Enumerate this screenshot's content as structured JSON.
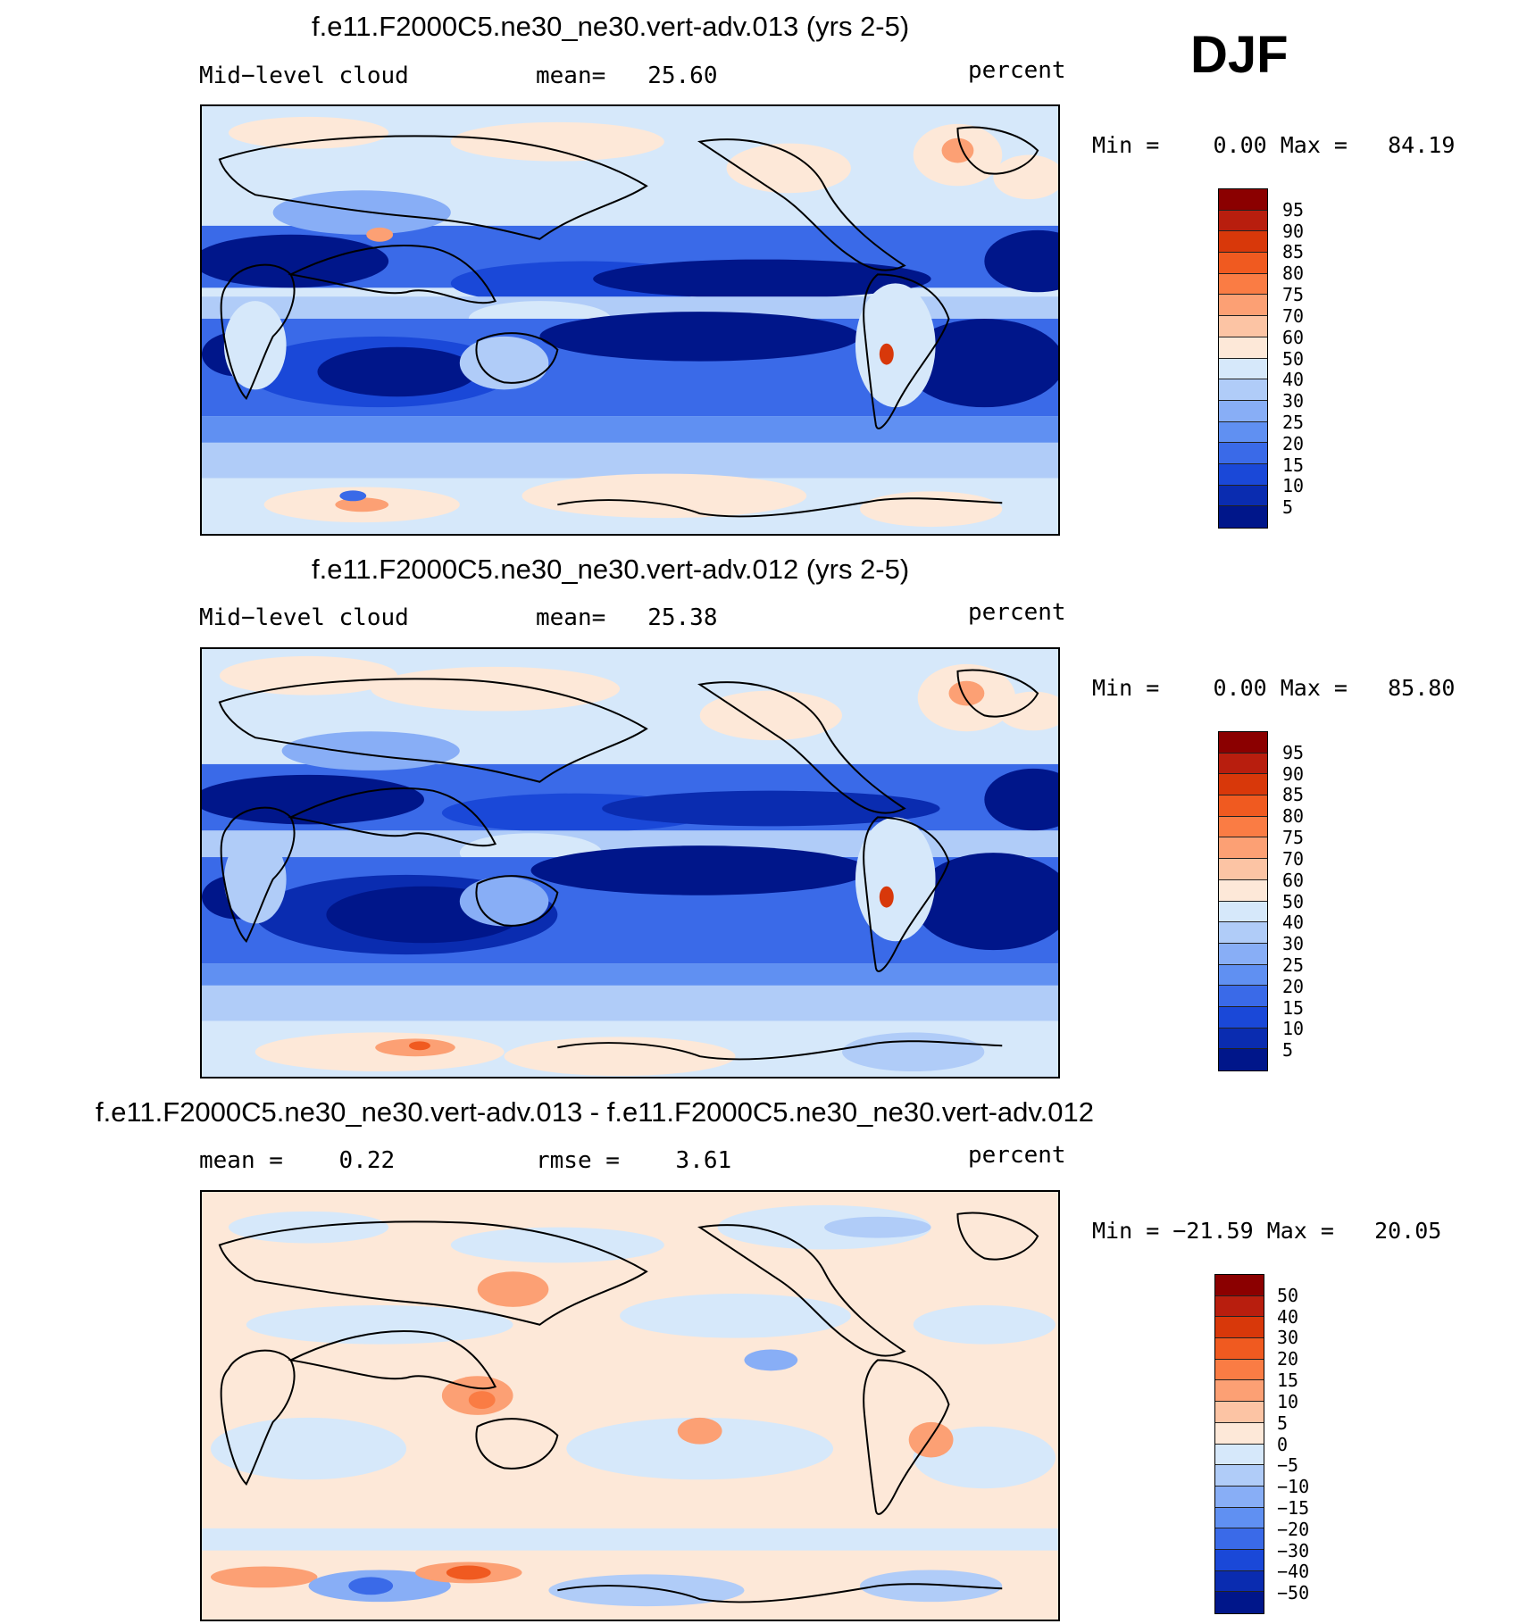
{
  "season": "DJF",
  "panels": [
    {
      "title": "f.e11.F2000C5.ne30_ne30.vert-adv.013 (yrs 2-5)",
      "left_label": "Mid−level cloud",
      "center_label": "mean=   25.60",
      "right_label": "percent",
      "minmax": "Min =    0.00 Max =   84.19",
      "colorbar": {
        "levels": [
          "95",
          "90",
          "85",
          "80",
          "75",
          "70",
          "60",
          "50",
          "40",
          "30",
          "25",
          "20",
          "15",
          "10",
          "5"
        ],
        "colors": [
          "#8b0000",
          "#b81e0e",
          "#d8380a",
          "#f05a20",
          "#fa7c44",
          "#fca074",
          "#fcc4a4",
          "#fde8d8",
          "#d6e8fa",
          "#b0ccf8",
          "#88aef6",
          "#6090f2",
          "#3a6ae8",
          "#1a48d8",
          "#0a2cb0",
          "#00168a"
        ]
      }
    },
    {
      "title": "f.e11.F2000C5.ne30_ne30.vert-adv.012 (yrs 2-5)",
      "left_label": "Mid−level cloud",
      "center_label": "mean=   25.38",
      "right_label": "percent",
      "minmax": "Min =    0.00 Max =   85.80",
      "colorbar": {
        "levels": [
          "95",
          "90",
          "85",
          "80",
          "75",
          "70",
          "60",
          "50",
          "40",
          "30",
          "25",
          "20",
          "15",
          "10",
          "5"
        ],
        "colors": [
          "#8b0000",
          "#b81e0e",
          "#d8380a",
          "#f05a20",
          "#fa7c44",
          "#fca074",
          "#fcc4a4",
          "#fde8d8",
          "#d6e8fa",
          "#b0ccf8",
          "#88aef6",
          "#6090f2",
          "#3a6ae8",
          "#1a48d8",
          "#0a2cb0",
          "#00168a"
        ]
      }
    },
    {
      "title": "f.e11.F2000C5.ne30_ne30.vert-adv.013 - f.e11.F2000C5.ne30_ne30.vert-adv.012",
      "left_label": "mean =    0.22",
      "center_label": "rmse =    3.61",
      "right_label": "percent",
      "minmax": "Min = −21.59 Max =   20.05",
      "colorbar": {
        "levels": [
          "50",
          "40",
          "30",
          "20",
          "15",
          "10",
          "5",
          "0",
          "−5",
          "−10",
          "−15",
          "−20",
          "−30",
          "−40",
          "−50"
        ],
        "colors": [
          "#8b0000",
          "#b81e0e",
          "#d8380a",
          "#f05a20",
          "#fa7c44",
          "#fca074",
          "#fcc4a4",
          "#fde8d8",
          "#d6e8fa",
          "#b0ccf8",
          "#88aef6",
          "#6090f2",
          "#3a6ae8",
          "#1a48d8",
          "#0a2cb0",
          "#00168a"
        ]
      }
    }
  ]
}
